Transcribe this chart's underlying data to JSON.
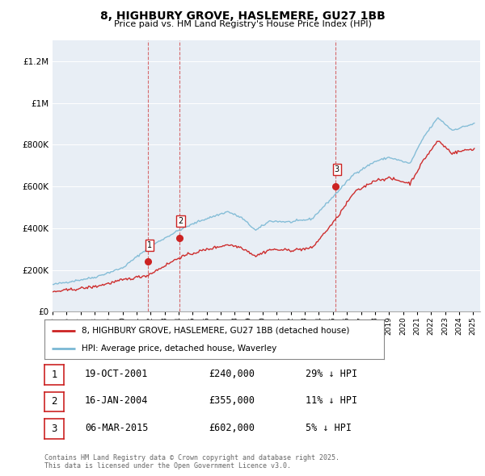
{
  "title": "8, HIGHBURY GROVE, HASLEMERE, GU27 1BB",
  "subtitle": "Price paid vs. HM Land Registry's House Price Index (HPI)",
  "ylim": [
    0,
    1300000
  ],
  "yticks": [
    0,
    200000,
    400000,
    600000,
    800000,
    1000000,
    1200000
  ],
  "plot_bg": "#e8eef5",
  "hpi_color": "#7ab8d4",
  "price_color": "#cc2222",
  "vline_color": "#cc2222",
  "purchase_decimal": [
    2001.8,
    2004.05,
    2015.18
  ],
  "purchase_prices": [
    240000,
    355000,
    602000
  ],
  "purchase_labels": [
    "1",
    "2",
    "3"
  ],
  "legend_label_price": "8, HIGHBURY GROVE, HASLEMERE, GU27 1BB (detached house)",
  "legend_label_hpi": "HPI: Average price, detached house, Waverley",
  "table_rows": [
    [
      "1",
      "19-OCT-2001",
      "£240,000",
      "29% ↓ HPI"
    ],
    [
      "2",
      "16-JAN-2004",
      "£355,000",
      "11% ↓ HPI"
    ],
    [
      "3",
      "06-MAR-2015",
      "£602,000",
      "5% ↓ HPI"
    ]
  ],
  "footer": "Contains HM Land Registry data © Crown copyright and database right 2025.\nThis data is licensed under the Open Government Licence v3.0.",
  "hpi_anchors_t": [
    1995.0,
    1998.0,
    2000.0,
    2002.0,
    2004.0,
    2005.5,
    2007.5,
    2008.5,
    2009.5,
    2010.5,
    2012.0,
    2013.5,
    2015.0,
    2016.5,
    2018.0,
    2019.0,
    2020.5,
    2021.5,
    2022.5,
    2023.5,
    2024.5,
    2025.0
  ],
  "hpi_anchors_v": [
    130000,
    165000,
    210000,
    315000,
    390000,
    435000,
    480000,
    450000,
    390000,
    435000,
    430000,
    445000,
    550000,
    660000,
    720000,
    740000,
    710000,
    840000,
    930000,
    870000,
    890000,
    900000
  ],
  "price_anchors_t": [
    1995.0,
    1998.0,
    2000.0,
    2001.8,
    2004.05,
    2005.5,
    2007.5,
    2008.5,
    2009.5,
    2010.5,
    2012.0,
    2013.5,
    2015.18,
    2016.5,
    2018.0,
    2019.0,
    2020.5,
    2021.5,
    2022.5,
    2023.5,
    2024.5,
    2025.0
  ],
  "price_anchors_v": [
    95000,
    120000,
    152000,
    175000,
    260000,
    290000,
    322000,
    308000,
    267000,
    298000,
    295000,
    305000,
    440000,
    570000,
    630000,
    640000,
    615000,
    730000,
    820000,
    760000,
    775000,
    780000
  ]
}
